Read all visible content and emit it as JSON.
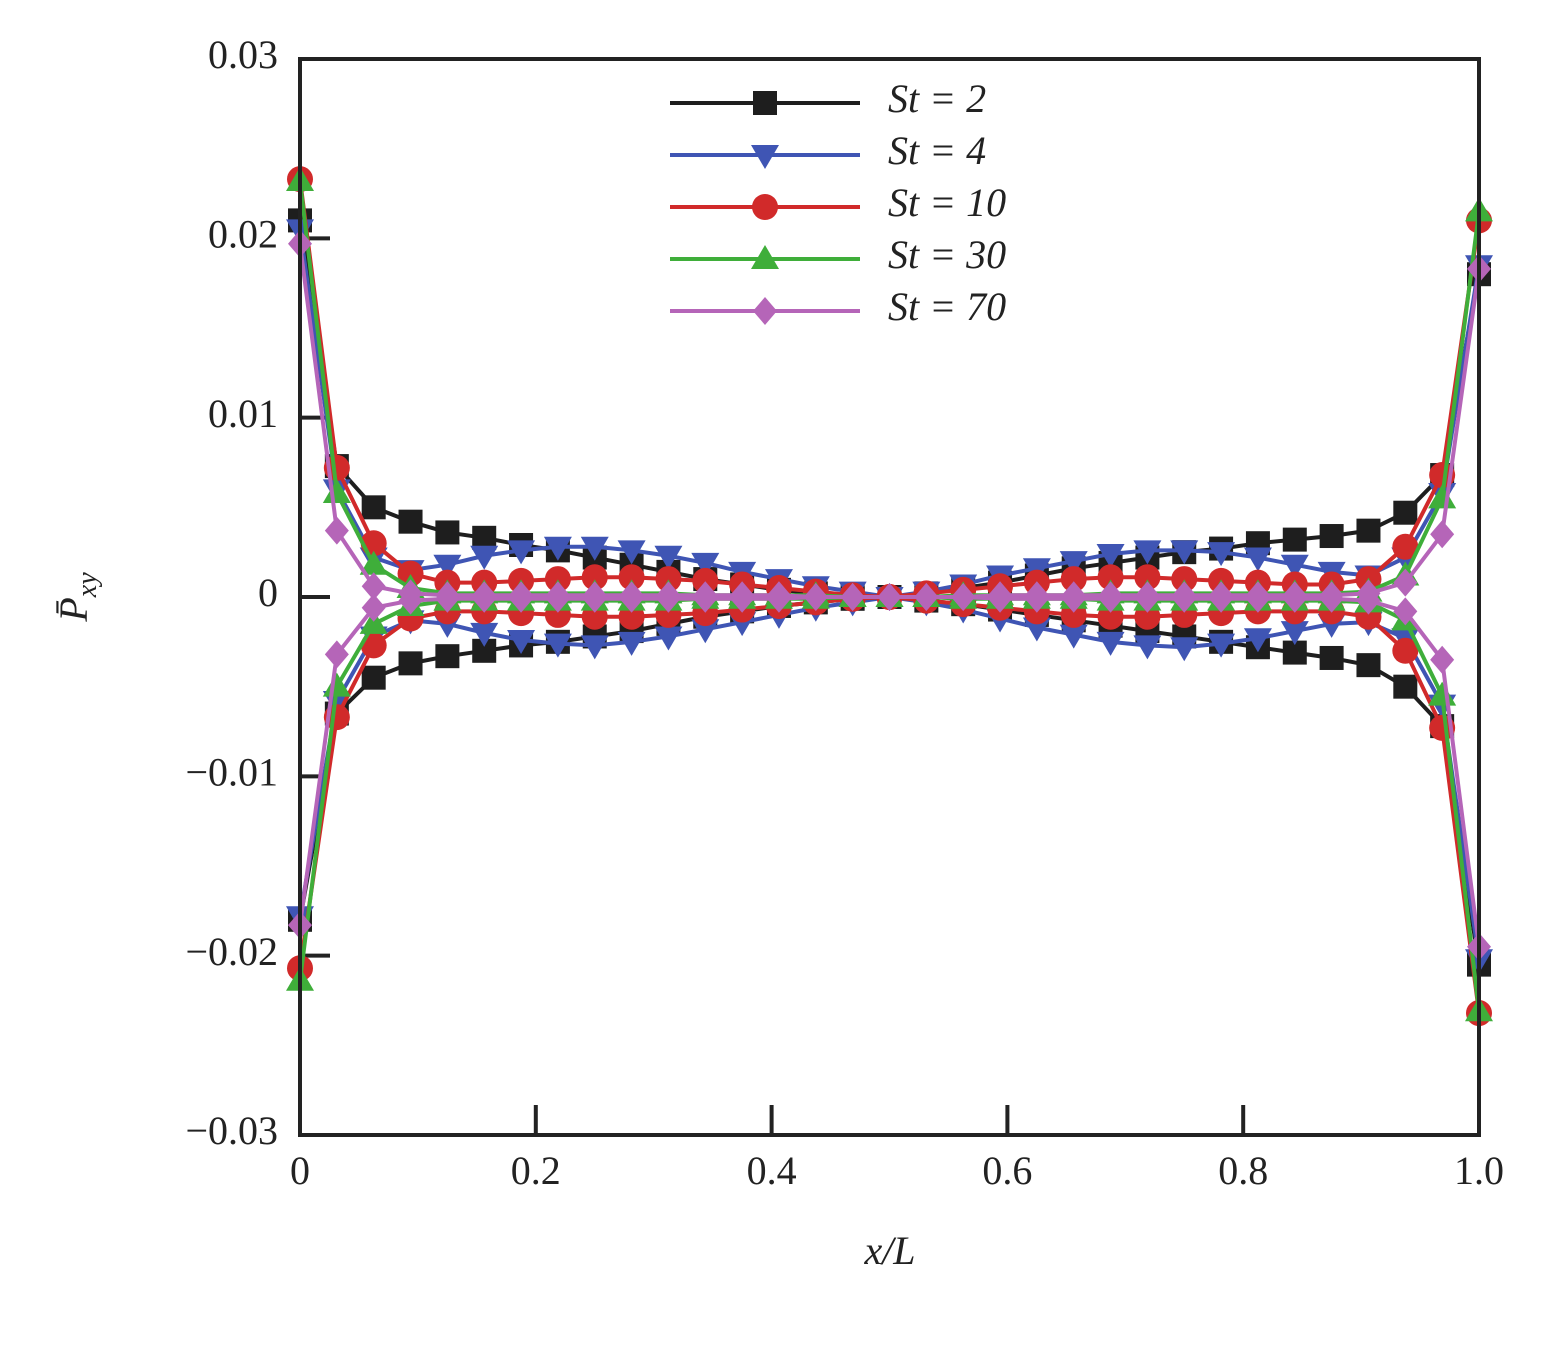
{
  "chart_data": {
    "type": "line",
    "xlabel": "x/L",
    "ylabel_main": "P̄",
    "ylabel_sub": "xy",
    "x": [
      0,
      0.03125,
      0.0625,
      0.09375,
      0.125,
      0.15625,
      0.1875,
      0.21875,
      0.25,
      0.28125,
      0.3125,
      0.34375,
      0.375,
      0.40625,
      0.4375,
      0.46875,
      0.5,
      0.53125,
      0.5625,
      0.59375,
      0.625,
      0.65625,
      0.6875,
      0.71875,
      0.75,
      0.78125,
      0.8125,
      0.84375,
      0.875,
      0.90625,
      0.9375,
      0.96875,
      1
    ],
    "xlim": [
      0,
      1
    ],
    "xticks": [
      0,
      0.2,
      0.4,
      0.6,
      0.8,
      {
        "value": 1,
        "label": "1.0"
      }
    ],
    "ylim": [
      -0.03,
      0.03
    ],
    "yticks": [
      {
        "value": -0.03,
        "label": "−0.03"
      },
      {
        "value": -0.02,
        "label": "−0.02"
      },
      {
        "value": -0.01,
        "label": "−0.01"
      },
      0,
      0.01,
      0.02,
      0.03
    ],
    "grid": false,
    "legend": "top",
    "series": [
      {
        "name": "St = 2",
        "color": "#1e1e1e",
        "marker": "square",
        "values": [
          0.021,
          0.0073,
          0.005,
          0.0042,
          0.0036,
          0.0033,
          0.0029,
          0.0026,
          0.0022,
          0.0018,
          0.0014,
          0.001,
          0.0007,
          0.0004,
          0.0002,
          0.0001,
          0,
          0.0002,
          0.0005,
          0.0008,
          0.0012,
          0.0016,
          0.0019,
          0.0022,
          0.0025,
          0.0027,
          0.003,
          0.0032,
          0.0034,
          0.0037,
          0.0047,
          0.0068,
          0.018
        ],
        "values_lower": [
          -0.018,
          -0.0065,
          -0.0045,
          -0.0037,
          -0.0033,
          -0.003,
          -0.0027,
          -0.0025,
          -0.0022,
          -0.0019,
          -0.0015,
          -0.0011,
          -0.0008,
          -0.0005,
          -0.0003,
          -0.0001,
          0,
          -0.0002,
          -0.0004,
          -0.0007,
          -0.001,
          -0.0013,
          -0.0016,
          -0.0019,
          -0.0022,
          -0.0025,
          -0.0028,
          -0.0031,
          -0.0034,
          -0.0038,
          -0.005,
          -0.0072,
          -0.0205
        ]
      },
      {
        "name": "St = 4",
        "color": "#3f55b4",
        "marker": "triangle-down",
        "values": [
          0.0205,
          0.006,
          0.0022,
          0.0015,
          0.0018,
          0.0023,
          0.0026,
          0.0028,
          0.0028,
          0.0026,
          0.0023,
          0.0019,
          0.0014,
          0.001,
          0.0006,
          0.0003,
          0,
          0.0003,
          0.0007,
          0.0012,
          0.0016,
          0.002,
          0.0024,
          0.0026,
          0.0026,
          0.0025,
          0.0022,
          0.0018,
          0.0014,
          0.0012,
          0.0022,
          0.0058,
          0.0185
        ],
        "values_lower": [
          -0.0178,
          -0.0058,
          -0.0022,
          -0.0013,
          -0.0015,
          -0.002,
          -0.0024,
          -0.0026,
          -0.0027,
          -0.0025,
          -0.0022,
          -0.0018,
          -0.0014,
          -0.001,
          -0.0006,
          -0.0003,
          0,
          -0.0003,
          -0.0007,
          -0.0012,
          -0.0017,
          -0.0021,
          -0.0025,
          -0.0027,
          -0.0028,
          -0.0026,
          -0.0023,
          -0.0019,
          -0.0015,
          -0.0014,
          -0.0023,
          -0.006,
          -0.0202
        ]
      },
      {
        "name": "St = 10",
        "color": "#d12a2a",
        "marker": "circle",
        "values": [
          0.0233,
          0.0072,
          0.003,
          0.0013,
          0.0008,
          0.0008,
          0.0009,
          0.001,
          0.0011,
          0.0011,
          0.001,
          0.0009,
          0.0007,
          0.0005,
          0.0003,
          0.0001,
          0,
          0.0002,
          0.0004,
          0.0006,
          0.0008,
          0.001,
          0.0011,
          0.0011,
          0.001,
          0.0009,
          0.0008,
          0.0007,
          0.0007,
          0.001,
          0.0028,
          0.0068,
          0.021
        ],
        "values_lower": [
          -0.0207,
          -0.0067,
          -0.0027,
          -0.0012,
          -0.0008,
          -0.0008,
          -0.0009,
          -0.001,
          -0.0011,
          -0.0011,
          -0.001,
          -0.0009,
          -0.0007,
          -0.0005,
          -0.0003,
          -0.0001,
          0,
          -0.0002,
          -0.0004,
          -0.0006,
          -0.0008,
          -0.001,
          -0.0011,
          -0.0011,
          -0.001,
          -0.0009,
          -0.0008,
          -0.0008,
          -0.0008,
          -0.0011,
          -0.003,
          -0.0073,
          -0.0232
        ]
      },
      {
        "name": "St = 30",
        "color": "#3fae3a",
        "marker": "triangle-up",
        "values": [
          0.0232,
          0.0058,
          0.0018,
          0.0005,
          0.0002,
          0.0002,
          0.0002,
          0.0002,
          0.0002,
          0.0002,
          0.0002,
          0.0001,
          0.0001,
          0.0001,
          0.0001,
          0,
          0,
          0,
          0.0001,
          0.0001,
          0.0001,
          0.0001,
          0.0002,
          0.0002,
          0.0002,
          0.0002,
          0.0002,
          0.0002,
          0.0002,
          0.0003,
          0.0012,
          0.0055,
          0.0215
        ],
        "values_lower": [
          -0.0214,
          -0.005,
          -0.0015,
          -0.0005,
          -0.0002,
          -0.0002,
          -0.0002,
          -0.0002,
          -0.0002,
          -0.0002,
          -0.0002,
          -0.0001,
          -0.0001,
          -0.0001,
          -0.0001,
          0,
          0,
          0,
          -0.0001,
          -0.0001,
          -0.0001,
          -0.0001,
          -0.0002,
          -0.0002,
          -0.0002,
          -0.0002,
          -0.0002,
          -0.0002,
          -0.0002,
          -0.0003,
          -0.0013,
          -0.0055,
          -0.0231
        ]
      },
      {
        "name": "St = 70",
        "color": "#b565b8",
        "marker": "diamond",
        "values": [
          0.0197,
          0.0037,
          0.0006,
          0.0002,
          0.0001,
          0.0001,
          0.0001,
          0.0001,
          0.0001,
          0.0001,
          0.0001,
          0.0001,
          0.0001,
          0.0001,
          0,
          0,
          0,
          0,
          0,
          0.0001,
          0.0001,
          0.0001,
          0.0001,
          0.0001,
          0.0001,
          0.0001,
          0.0001,
          0.0001,
          0.0001,
          0.0002,
          0.0008,
          0.0035,
          0.0183
        ],
        "values_lower": [
          -0.0183,
          -0.0032,
          -0.0006,
          -0.0002,
          -0.0001,
          -0.0001,
          -0.0001,
          -0.0001,
          -0.0001,
          -0.0001,
          -0.0001,
          -0.0001,
          -0.0001,
          -0.0001,
          0,
          0,
          0,
          0,
          0,
          -0.0001,
          -0.0001,
          -0.0001,
          -0.0001,
          -0.0001,
          -0.0001,
          -0.0001,
          -0.0001,
          -0.0001,
          -0.0001,
          -0.0002,
          -0.0008,
          -0.0035,
          -0.0195
        ]
      }
    ]
  }
}
